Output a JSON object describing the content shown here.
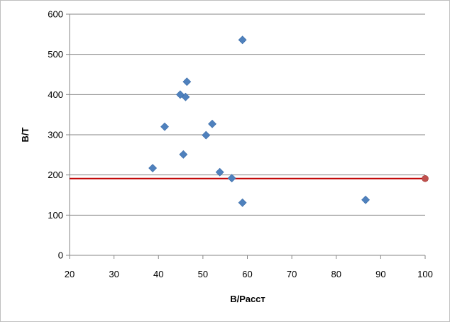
{
  "chart_data": {
    "type": "scatter",
    "title": "",
    "xlabel": "В/Расст",
    "ylabel": "В/Т",
    "xlim": [
      20,
      100
    ],
    "ylim": [
      0,
      600
    ],
    "x_ticks": [
      20,
      30,
      40,
      50,
      60,
      70,
      80,
      90,
      100
    ],
    "y_ticks": [
      0,
      100,
      200,
      300,
      400,
      500,
      600
    ],
    "grid": "horizontal",
    "legend": "none",
    "series": [
      {
        "marker": "diamond",
        "color": "#4F81BD",
        "points": [
          {
            "x": 38.7,
            "y": 217
          },
          {
            "x": 41.4,
            "y": 320
          },
          {
            "x": 44.9,
            "y": 400
          },
          {
            "x": 45.6,
            "y": 251
          },
          {
            "x": 46.1,
            "y": 394
          },
          {
            "x": 46.4,
            "y": 432
          },
          {
            "x": 50.7,
            "y": 299
          },
          {
            "x": 52.1,
            "y": 327
          },
          {
            "x": 53.8,
            "y": 207
          },
          {
            "x": 56.5,
            "y": 192
          },
          {
            "x": 58.9,
            "y": 536
          },
          {
            "x": 58.9,
            "y": 131
          },
          {
            "x": 86.6,
            "y": 138
          }
        ]
      },
      {
        "marker": "circle",
        "color": "#C0504D",
        "points": [
          {
            "x": 100,
            "y": 191
          }
        ]
      }
    ],
    "reference_line": {
      "y": 191,
      "x_range": [
        20,
        100
      ],
      "color": "#C00000"
    }
  }
}
